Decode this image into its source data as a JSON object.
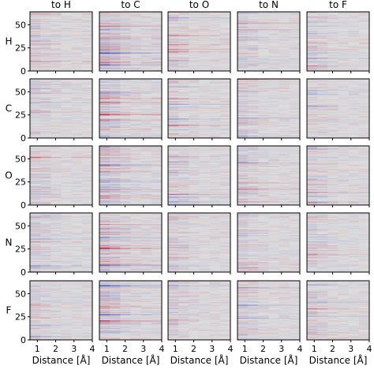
{
  "chart_data": {
    "type": "heatmap",
    "layout": "5x5 grid of heatmap panels",
    "columns": [
      "to H",
      "to C",
      "to O",
      "to N",
      "to F"
    ],
    "rows": [
      "H",
      "C",
      "O",
      "N",
      "F"
    ],
    "xlabel": "Distance [Å]",
    "xlim": [
      0.6,
      4.0
    ],
    "xticks": [
      "1",
      "2",
      "3",
      "4"
    ],
    "ylim": [
      0,
      64
    ],
    "yticks": [
      "0",
      "25",
      "50"
    ],
    "colormap": "coolwarm (blue = negative, grey = zero, red = positive)",
    "colors": {
      "negative": "#3b4cc0",
      "neutral": "#dddddd",
      "positive": "#b40426",
      "frame": "#000000"
    },
    "grid": false,
    "legend": "none"
  }
}
